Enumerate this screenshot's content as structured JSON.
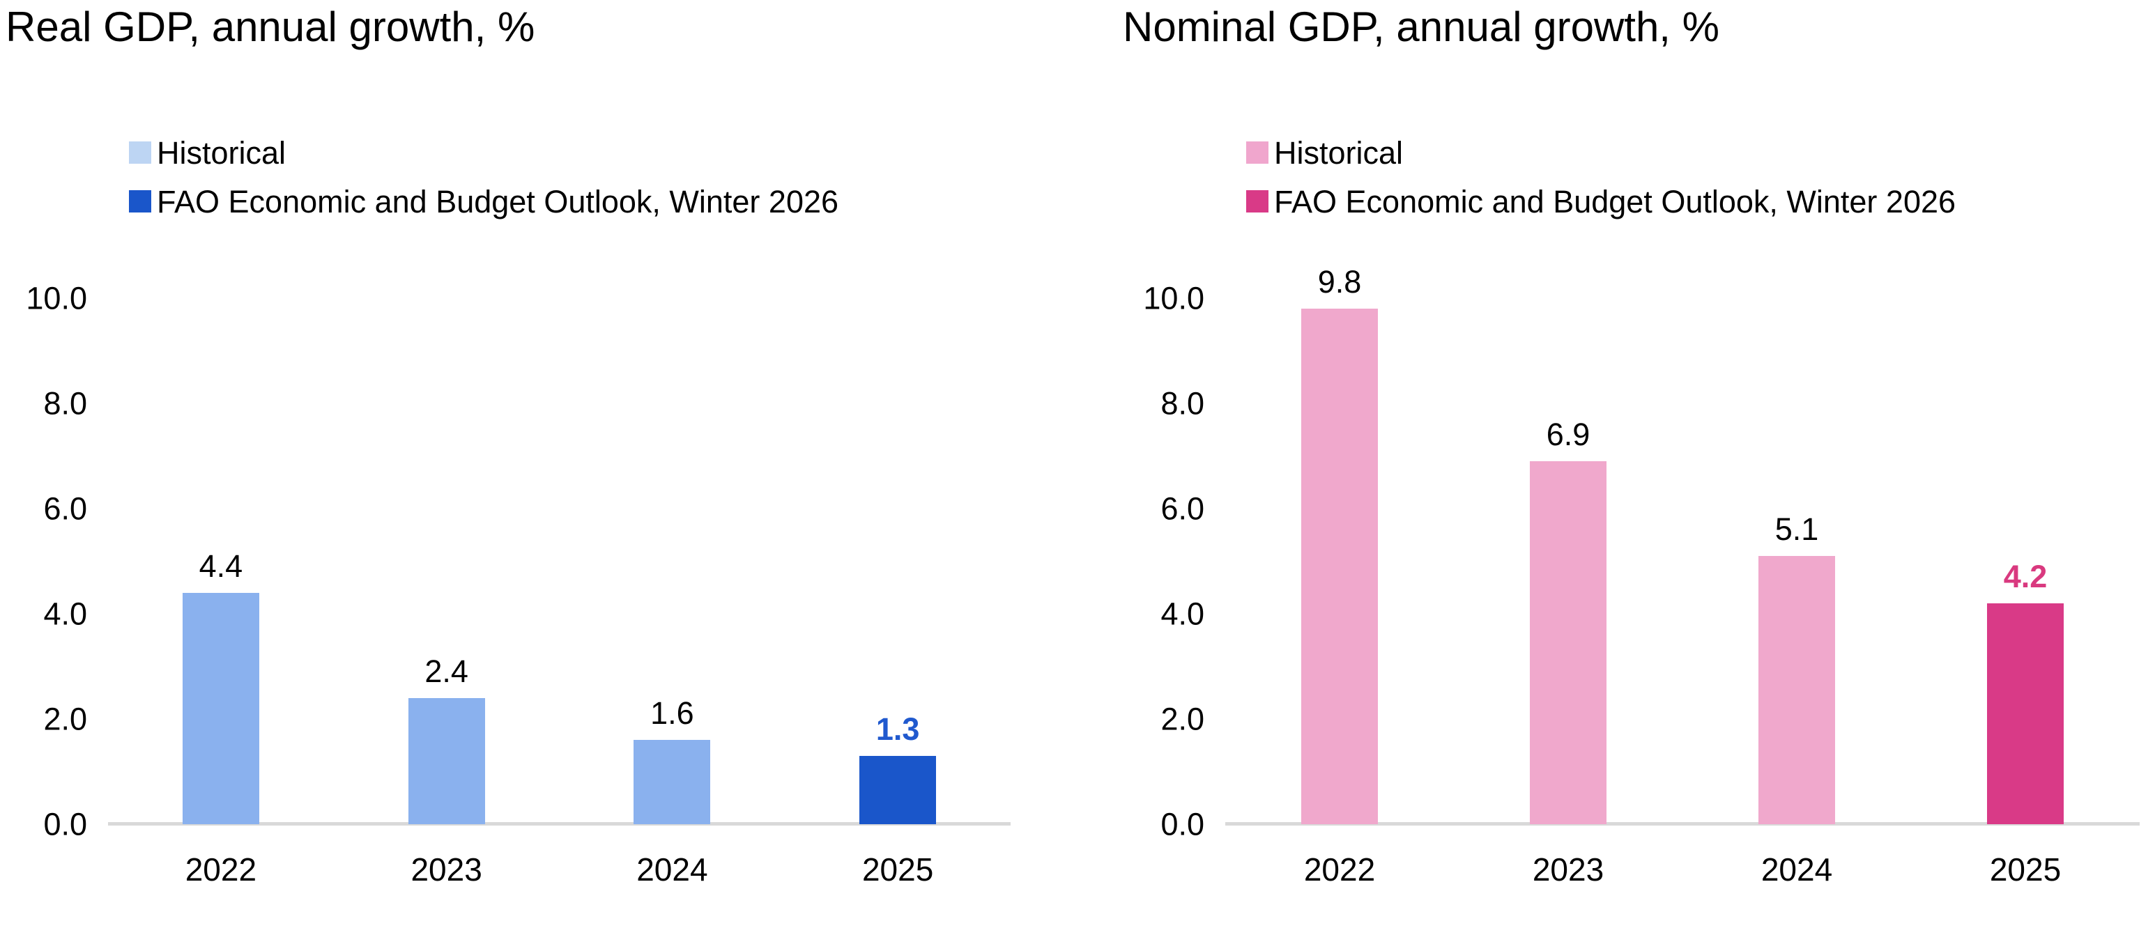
{
  "page": {
    "background": "#ffffff",
    "axis_line_color": "#D9D9D9"
  },
  "chart_data": [
    {
      "type": "bar",
      "title": "Real GDP, annual growth, %",
      "categories": [
        "2022",
        "2023",
        "2024",
        "2025"
      ],
      "series": [
        {
          "name": "Historical",
          "values": [
            4.4,
            2.4,
            1.6,
            null
          ],
          "labels": [
            "4.4",
            "2.4",
            "1.6",
            null
          ],
          "bar_color": "#8AB1EE",
          "legend_color": "#BDD5F3",
          "value_label_color": "#000000",
          "value_label_bold": false
        },
        {
          "name": "FAO Economic and Budget Outlook, Winter 2026",
          "values": [
            null,
            null,
            null,
            1.3
          ],
          "labels": [
            null,
            null,
            null,
            "1.3"
          ],
          "bar_color": "#1A56CA",
          "legend_color": "#1A56CA",
          "value_label_color": "#2059CE",
          "value_label_bold": true
        }
      ],
      "xlabel": "",
      "ylabel": "",
      "ylim": [
        0,
        10
      ],
      "yticks": [
        {
          "value": 10,
          "label": "10.0"
        },
        {
          "value": 8,
          "label": "8.0"
        },
        {
          "value": 6,
          "label": "6.0"
        },
        {
          "value": 4,
          "label": "4.0"
        },
        {
          "value": 2,
          "label": "2.0"
        },
        {
          "value": 0,
          "label": "0.0"
        }
      ],
      "legend_position": "top-left",
      "grid": false,
      "axis_line_color": "#D9D9D9"
    },
    {
      "type": "bar",
      "title": "Nominal GDP, annual growth, %",
      "categories": [
        "2022",
        "2023",
        "2024",
        "2025"
      ],
      "series": [
        {
          "name": "Historical",
          "values": [
            9.8,
            6.9,
            5.1,
            null
          ],
          "labels": [
            "9.8",
            "6.9",
            "5.1",
            null
          ],
          "bar_color": "#F0A8CC",
          "legend_color": "#F0A6CD",
          "value_label_color": "#000000",
          "value_label_bold": false
        },
        {
          "name": "FAO Economic and Budget Outlook, Winter 2026",
          "values": [
            null,
            null,
            null,
            4.2
          ],
          "labels": [
            null,
            null,
            null,
            "4.2"
          ],
          "bar_color": "#D93A87",
          "legend_color": "#D93A87",
          "value_label_color": "#D9397F",
          "value_label_bold": true
        }
      ],
      "xlabel": "",
      "ylabel": "",
      "ylim": [
        0,
        10
      ],
      "yticks": [
        {
          "value": 10,
          "label": "10.0"
        },
        {
          "value": 8,
          "label": "8.0"
        },
        {
          "value": 6,
          "label": "6.0"
        },
        {
          "value": 4,
          "label": "4.0"
        },
        {
          "value": 2,
          "label": "2.0"
        },
        {
          "value": 0,
          "label": "0.0"
        }
      ],
      "legend_position": "top-left",
      "grid": false,
      "axis_line_color": "#D9D9D9"
    }
  ]
}
